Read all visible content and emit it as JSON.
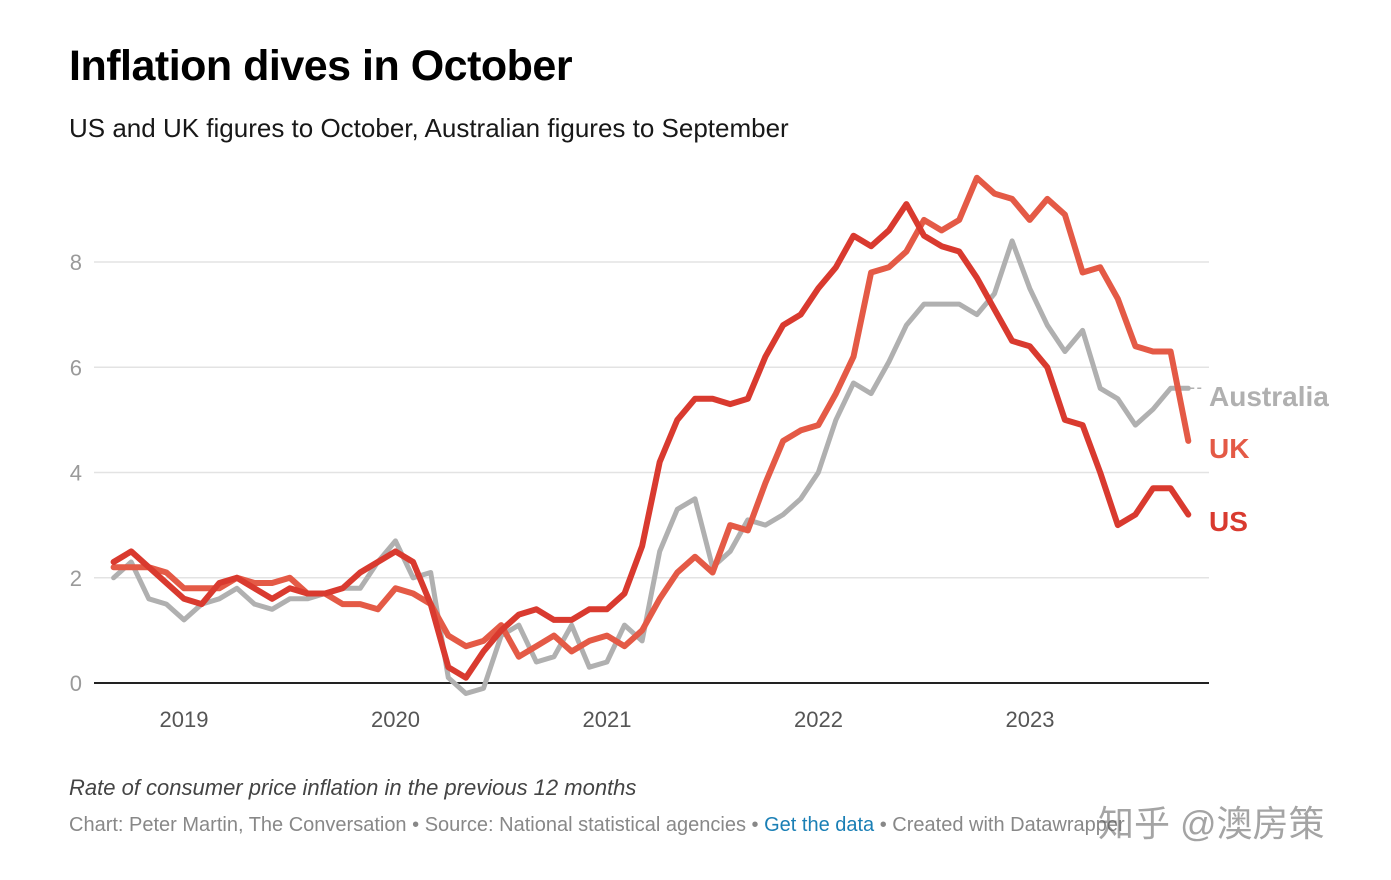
{
  "chart_data": {
    "type": "line",
    "title": "Inflation dives in October",
    "subtitle": "US and UK figures to October, Australian figures to September",
    "xlabel": "",
    "ylabel": "Rate of consumer price inflation in the previous 12 months",
    "ylim": [
      0,
      9.5
    ],
    "xlim": [
      2018.58,
      2023.92
    ],
    "y_ticks": [
      0,
      2,
      4,
      6,
      8
    ],
    "x_ticks": [
      {
        "label": "2019",
        "value": 2019.0
      },
      {
        "label": "2020",
        "value": 2020.0
      },
      {
        "label": "2021",
        "value": 2021.0
      },
      {
        "label": "2022",
        "value": 2022.0
      },
      {
        "label": "2023",
        "value": 2023.0
      }
    ],
    "grid": true,
    "series": [
      {
        "name": "Australia",
        "color": "#b0b0b0",
        "x_start": 2018.667,
        "x_step": 0.0833,
        "values": [
          2.0,
          2.3,
          1.6,
          1.5,
          1.2,
          1.5,
          1.6,
          1.8,
          1.5,
          1.4,
          1.6,
          1.6,
          1.7,
          1.8,
          1.8,
          2.3,
          2.7,
          2.0,
          2.1,
          0.1,
          -0.2,
          -0.1,
          0.9,
          1.1,
          0.4,
          0.5,
          1.1,
          0.3,
          0.4,
          1.1,
          0.8,
          2.5,
          3.3,
          3.5,
          2.2,
          2.5,
          3.1,
          3.0,
          3.2,
          3.5,
          4.0,
          5.0,
          5.7,
          5.5,
          6.1,
          6.8,
          7.2,
          7.2,
          7.2,
          7.0,
          7.4,
          8.4,
          7.5,
          6.8,
          6.3,
          6.7,
          5.6,
          5.4,
          4.9,
          5.2,
          5.6,
          5.6
        ]
      },
      {
        "name": "UK",
        "color": "#e45a46",
        "x_start": 2018.667,
        "x_step": 0.0833,
        "values": [
          2.2,
          2.2,
          2.2,
          2.1,
          1.8,
          1.8,
          1.8,
          2.0,
          1.9,
          1.9,
          2.0,
          1.7,
          1.7,
          1.5,
          1.5,
          1.4,
          1.8,
          1.7,
          1.5,
          0.9,
          0.7,
          0.8,
          1.1,
          0.5,
          0.7,
          0.9,
          0.6,
          0.8,
          0.9,
          0.7,
          1.0,
          1.6,
          2.1,
          2.4,
          2.1,
          3.0,
          2.9,
          3.8,
          4.6,
          4.8,
          4.9,
          5.5,
          6.2,
          7.8,
          7.9,
          8.2,
          8.8,
          8.6,
          8.8,
          9.6,
          9.3,
          9.2,
          8.8,
          9.2,
          8.9,
          7.8,
          7.9,
          7.3,
          6.4,
          6.3,
          6.3,
          4.6
        ]
      },
      {
        "name": "US",
        "color": "#d93a2f",
        "x_start": 2018.667,
        "x_step": 0.0833,
        "values": [
          2.3,
          2.5,
          2.2,
          1.9,
          1.6,
          1.5,
          1.9,
          2.0,
          1.8,
          1.6,
          1.8,
          1.7,
          1.7,
          1.8,
          2.1,
          2.3,
          2.5,
          2.3,
          1.5,
          0.3,
          0.1,
          0.6,
          1.0,
          1.3,
          1.4,
          1.2,
          1.2,
          1.4,
          1.4,
          1.7,
          2.6,
          4.2,
          5.0,
          5.4,
          5.4,
          5.3,
          5.4,
          6.2,
          6.8,
          7.0,
          7.5,
          7.9,
          8.5,
          8.3,
          8.6,
          9.1,
          8.5,
          8.3,
          8.2,
          7.7,
          7.1,
          6.5,
          6.4,
          6.0,
          5.0,
          4.9,
          4.0,
          3.0,
          3.2,
          3.7,
          3.7,
          3.2
        ]
      }
    ]
  },
  "footer": {
    "credit": "Chart: Peter Martin, The Conversation",
    "separator": " • ",
    "source": "Source: National statistical agencies",
    "get_data": "Get the data",
    "created": "Created with Datawrapper"
  },
  "watermark": "知乎 @澳房策"
}
